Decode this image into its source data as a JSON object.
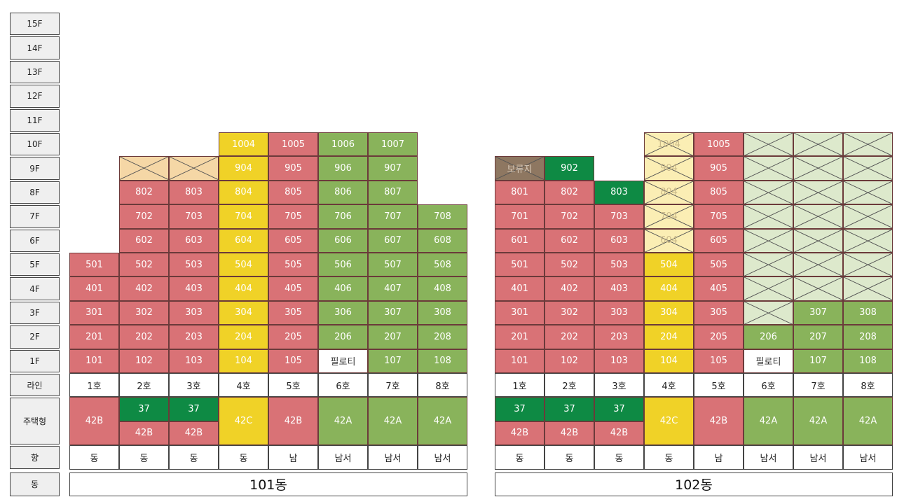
{
  "colors": {
    "red": "#d97276",
    "yellow": "#f0d227",
    "lightgreen": "#89b35b",
    "darkgreen": "#0e8a44",
    "peach": "#f5d7a6",
    "paleyellow": "#fbeeb4",
    "palegreen": "#dde9cc",
    "brown": "#8e7761",
    "white": "#ffffff"
  },
  "row_labels": {
    "floors": [
      "15F",
      "14F",
      "13F",
      "12F",
      "11F",
      "10F",
      "9F",
      "8F",
      "7F",
      "6F",
      "5F",
      "4F",
      "3F",
      "2F",
      "1F"
    ],
    "line": "라인",
    "type": "주택형",
    "direction": "향",
    "building": "동"
  },
  "buildings": [
    {
      "name": "101동",
      "lines": [
        "1호",
        "2호",
        "3호",
        "4호",
        "5호",
        "6호",
        "7호",
        "8호"
      ],
      "directions": [
        "동",
        "동",
        "동",
        "동",
        "남",
        "남서",
        "남서",
        "남서"
      ],
      "types": [
        {
          "top": "42B",
          "top_color": "red"
        },
        {
          "top": "37",
          "top_color": "darkgreen",
          "bottom": "42B",
          "bottom_color": "red"
        },
        {
          "top": "37",
          "top_color": "darkgreen",
          "bottom": "42B",
          "bottom_color": "red"
        },
        {
          "top": "42C",
          "top_color": "yellow"
        },
        {
          "top": "42B",
          "top_color": "red"
        },
        {
          "top": "42A",
          "top_color": "lightgreen"
        },
        {
          "top": "42A",
          "top_color": "lightgreen"
        },
        {
          "top": "42A",
          "top_color": "lightgreen"
        }
      ],
      "units": [
        {
          "c": 0,
          "f": 1,
          "t": "101",
          "k": "red"
        },
        {
          "c": 0,
          "f": 2,
          "t": "201",
          "k": "red"
        },
        {
          "c": 0,
          "f": 3,
          "t": "301",
          "k": "red"
        },
        {
          "c": 0,
          "f": 4,
          "t": "401",
          "k": "red"
        },
        {
          "c": 0,
          "f": 5,
          "t": "501",
          "k": "red"
        },
        {
          "c": 1,
          "f": 1,
          "t": "102",
          "k": "red"
        },
        {
          "c": 1,
          "f": 2,
          "t": "202",
          "k": "red"
        },
        {
          "c": 1,
          "f": 3,
          "t": "302",
          "k": "red"
        },
        {
          "c": 1,
          "f": 4,
          "t": "402",
          "k": "red"
        },
        {
          "c": 1,
          "f": 5,
          "t": "502",
          "k": "red"
        },
        {
          "c": 1,
          "f": 6,
          "t": "602",
          "k": "red"
        },
        {
          "c": 1,
          "f": 7,
          "t": "702",
          "k": "red"
        },
        {
          "c": 1,
          "f": 8,
          "t": "802",
          "k": "red"
        },
        {
          "c": 1,
          "f": 9,
          "t": "",
          "k": "peach",
          "x": true
        },
        {
          "c": 2,
          "f": 1,
          "t": "103",
          "k": "red"
        },
        {
          "c": 2,
          "f": 2,
          "t": "203",
          "k": "red"
        },
        {
          "c": 2,
          "f": 3,
          "t": "303",
          "k": "red"
        },
        {
          "c": 2,
          "f": 4,
          "t": "403",
          "k": "red"
        },
        {
          "c": 2,
          "f": 5,
          "t": "503",
          "k": "red"
        },
        {
          "c": 2,
          "f": 6,
          "t": "603",
          "k": "red"
        },
        {
          "c": 2,
          "f": 7,
          "t": "703",
          "k": "red"
        },
        {
          "c": 2,
          "f": 8,
          "t": "803",
          "k": "red"
        },
        {
          "c": 2,
          "f": 9,
          "t": "",
          "k": "peach",
          "x": true
        },
        {
          "c": 3,
          "f": 1,
          "t": "104",
          "k": "yellow"
        },
        {
          "c": 3,
          "f": 2,
          "t": "204",
          "k": "yellow"
        },
        {
          "c": 3,
          "f": 3,
          "t": "304",
          "k": "yellow"
        },
        {
          "c": 3,
          "f": 4,
          "t": "404",
          "k": "yellow"
        },
        {
          "c": 3,
          "f": 5,
          "t": "504",
          "k": "yellow"
        },
        {
          "c": 3,
          "f": 6,
          "t": "604",
          "k": "yellow"
        },
        {
          "c": 3,
          "f": 7,
          "t": "704",
          "k": "yellow"
        },
        {
          "c": 3,
          "f": 8,
          "t": "804",
          "k": "yellow"
        },
        {
          "c": 3,
          "f": 9,
          "t": "904",
          "k": "yellow"
        },
        {
          "c": 3,
          "f": 10,
          "t": "1004",
          "k": "yellow"
        },
        {
          "c": 4,
          "f": 1,
          "t": "105",
          "k": "red"
        },
        {
          "c": 4,
          "f": 2,
          "t": "205",
          "k": "red"
        },
        {
          "c": 4,
          "f": 3,
          "t": "305",
          "k": "red"
        },
        {
          "c": 4,
          "f": 4,
          "t": "405",
          "k": "red"
        },
        {
          "c": 4,
          "f": 5,
          "t": "505",
          "k": "red"
        },
        {
          "c": 4,
          "f": 6,
          "t": "605",
          "k": "red"
        },
        {
          "c": 4,
          "f": 7,
          "t": "705",
          "k": "red"
        },
        {
          "c": 4,
          "f": 8,
          "t": "805",
          "k": "red"
        },
        {
          "c": 4,
          "f": 9,
          "t": "905",
          "k": "red"
        },
        {
          "c": 4,
          "f": 10,
          "t": "1005",
          "k": "red"
        },
        {
          "c": 5,
          "f": 1,
          "t": "필로티",
          "k": "white"
        },
        {
          "c": 5,
          "f": 2,
          "t": "206",
          "k": "lightgreen"
        },
        {
          "c": 5,
          "f": 3,
          "t": "306",
          "k": "lightgreen"
        },
        {
          "c": 5,
          "f": 4,
          "t": "406",
          "k": "lightgreen"
        },
        {
          "c": 5,
          "f": 5,
          "t": "506",
          "k": "lightgreen"
        },
        {
          "c": 5,
          "f": 6,
          "t": "606",
          "k": "lightgreen"
        },
        {
          "c": 5,
          "f": 7,
          "t": "706",
          "k": "lightgreen"
        },
        {
          "c": 5,
          "f": 8,
          "t": "806",
          "k": "lightgreen"
        },
        {
          "c": 5,
          "f": 9,
          "t": "906",
          "k": "lightgreen"
        },
        {
          "c": 5,
          "f": 10,
          "t": "1006",
          "k": "lightgreen"
        },
        {
          "c": 6,
          "f": 1,
          "t": "107",
          "k": "lightgreen"
        },
        {
          "c": 6,
          "f": 2,
          "t": "207",
          "k": "lightgreen"
        },
        {
          "c": 6,
          "f": 3,
          "t": "307",
          "k": "lightgreen"
        },
        {
          "c": 6,
          "f": 4,
          "t": "407",
          "k": "lightgreen"
        },
        {
          "c": 6,
          "f": 5,
          "t": "507",
          "k": "lightgreen"
        },
        {
          "c": 6,
          "f": 6,
          "t": "607",
          "k": "lightgreen"
        },
        {
          "c": 6,
          "f": 7,
          "t": "707",
          "k": "lightgreen"
        },
        {
          "c": 6,
          "f": 8,
          "t": "807",
          "k": "lightgreen"
        },
        {
          "c": 6,
          "f": 9,
          "t": "907",
          "k": "lightgreen"
        },
        {
          "c": 6,
          "f": 10,
          "t": "1007",
          "k": "lightgreen"
        },
        {
          "c": 7,
          "f": 1,
          "t": "108",
          "k": "lightgreen"
        },
        {
          "c": 7,
          "f": 2,
          "t": "208",
          "k": "lightgreen"
        },
        {
          "c": 7,
          "f": 3,
          "t": "308",
          "k": "lightgreen"
        },
        {
          "c": 7,
          "f": 4,
          "t": "408",
          "k": "lightgreen"
        },
        {
          "c": 7,
          "f": 5,
          "t": "508",
          "k": "lightgreen"
        },
        {
          "c": 7,
          "f": 6,
          "t": "608",
          "k": "lightgreen"
        },
        {
          "c": 7,
          "f": 7,
          "t": "708",
          "k": "lightgreen"
        }
      ]
    },
    {
      "name": "102동",
      "lines": [
        "1호",
        "2호",
        "3호",
        "4호",
        "5호",
        "6호",
        "7호",
        "8호"
      ],
      "directions": [
        "동",
        "동",
        "동",
        "동",
        "남",
        "남서",
        "남서",
        "남서"
      ],
      "types": [
        {
          "top": "37",
          "top_color": "darkgreen",
          "bottom": "42B",
          "bottom_color": "red"
        },
        {
          "top": "37",
          "top_color": "darkgreen",
          "bottom": "42B",
          "bottom_color": "red"
        },
        {
          "top": "37",
          "top_color": "darkgreen",
          "bottom": "42B",
          "bottom_color": "red"
        },
        {
          "top": "42C",
          "top_color": "yellow"
        },
        {
          "top": "42B",
          "top_color": "red"
        },
        {
          "top": "42A",
          "top_color": "lightgreen"
        },
        {
          "top": "42A",
          "top_color": "lightgreen"
        },
        {
          "top": "42A",
          "top_color": "lightgreen"
        }
      ],
      "units": [
        {
          "c": 0,
          "f": 1,
          "t": "101",
          "k": "red"
        },
        {
          "c": 0,
          "f": 2,
          "t": "201",
          "k": "red"
        },
        {
          "c": 0,
          "f": 3,
          "t": "301",
          "k": "red"
        },
        {
          "c": 0,
          "f": 4,
          "t": "401",
          "k": "red"
        },
        {
          "c": 0,
          "f": 5,
          "t": "501",
          "k": "red"
        },
        {
          "c": 0,
          "f": 6,
          "t": "601",
          "k": "red"
        },
        {
          "c": 0,
          "f": 7,
          "t": "701",
          "k": "red"
        },
        {
          "c": 0,
          "f": 8,
          "t": "801",
          "k": "red"
        },
        {
          "c": 0,
          "f": 9,
          "t": "보류지",
          "k": "brown",
          "x": true
        },
        {
          "c": 1,
          "f": 1,
          "t": "102",
          "k": "red"
        },
        {
          "c": 1,
          "f": 2,
          "t": "202",
          "k": "red"
        },
        {
          "c": 1,
          "f": 3,
          "t": "302",
          "k": "red"
        },
        {
          "c": 1,
          "f": 4,
          "t": "402",
          "k": "red"
        },
        {
          "c": 1,
          "f": 5,
          "t": "502",
          "k": "red"
        },
        {
          "c": 1,
          "f": 6,
          "t": "602",
          "k": "red"
        },
        {
          "c": 1,
          "f": 7,
          "t": "702",
          "k": "red"
        },
        {
          "c": 1,
          "f": 8,
          "t": "802",
          "k": "red"
        },
        {
          "c": 1,
          "f": 9,
          "t": "902",
          "k": "darkgreen"
        },
        {
          "c": 2,
          "f": 1,
          "t": "103",
          "k": "red"
        },
        {
          "c": 2,
          "f": 2,
          "t": "203",
          "k": "red"
        },
        {
          "c": 2,
          "f": 3,
          "t": "303",
          "k": "red"
        },
        {
          "c": 2,
          "f": 4,
          "t": "403",
          "k": "red"
        },
        {
          "c": 2,
          "f": 5,
          "t": "503",
          "k": "red"
        },
        {
          "c": 2,
          "f": 6,
          "t": "603",
          "k": "red"
        },
        {
          "c": 2,
          "f": 7,
          "t": "703",
          "k": "red"
        },
        {
          "c": 2,
          "f": 8,
          "t": "803",
          "k": "darkgreen"
        },
        {
          "c": 3,
          "f": 1,
          "t": "104",
          "k": "yellow"
        },
        {
          "c": 3,
          "f": 2,
          "t": "204",
          "k": "yellow"
        },
        {
          "c": 3,
          "f": 3,
          "t": "304",
          "k": "yellow"
        },
        {
          "c": 3,
          "f": 4,
          "t": "404",
          "k": "yellow"
        },
        {
          "c": 3,
          "f": 5,
          "t": "504",
          "k": "yellow"
        },
        {
          "c": 3,
          "f": 6,
          "t": "604",
          "k": "paleyellow",
          "x": true
        },
        {
          "c": 3,
          "f": 7,
          "t": "704",
          "k": "paleyellow",
          "x": true
        },
        {
          "c": 3,
          "f": 8,
          "t": "804",
          "k": "paleyellow",
          "x": true
        },
        {
          "c": 3,
          "f": 9,
          "t": "904",
          "k": "paleyellow",
          "x": true
        },
        {
          "c": 3,
          "f": 10,
          "t": "1004",
          "k": "paleyellow",
          "x": true
        },
        {
          "c": 4,
          "f": 1,
          "t": "105",
          "k": "red"
        },
        {
          "c": 4,
          "f": 2,
          "t": "205",
          "k": "red"
        },
        {
          "c": 4,
          "f": 3,
          "t": "305",
          "k": "red"
        },
        {
          "c": 4,
          "f": 4,
          "t": "405",
          "k": "red"
        },
        {
          "c": 4,
          "f": 5,
          "t": "505",
          "k": "red"
        },
        {
          "c": 4,
          "f": 6,
          "t": "605",
          "k": "red"
        },
        {
          "c": 4,
          "f": 7,
          "t": "705",
          "k": "red"
        },
        {
          "c": 4,
          "f": 8,
          "t": "805",
          "k": "red"
        },
        {
          "c": 4,
          "f": 9,
          "t": "905",
          "k": "red"
        },
        {
          "c": 4,
          "f": 10,
          "t": "1005",
          "k": "red"
        },
        {
          "c": 5,
          "f": 1,
          "t": "필로티",
          "k": "white"
        },
        {
          "c": 5,
          "f": 2,
          "t": "206",
          "k": "lightgreen"
        },
        {
          "c": 5,
          "f": 3,
          "t": "",
          "k": "palegreen",
          "x": true
        },
        {
          "c": 5,
          "f": 4,
          "t": "",
          "k": "palegreen",
          "x": true
        },
        {
          "c": 5,
          "f": 5,
          "t": "",
          "k": "palegreen",
          "x": true
        },
        {
          "c": 5,
          "f": 6,
          "t": "",
          "k": "palegreen",
          "x": true
        },
        {
          "c": 5,
          "f": 7,
          "t": "",
          "k": "palegreen",
          "x": true
        },
        {
          "c": 5,
          "f": 8,
          "t": "",
          "k": "palegreen",
          "x": true
        },
        {
          "c": 5,
          "f": 9,
          "t": "",
          "k": "palegreen",
          "x": true
        },
        {
          "c": 5,
          "f": 10,
          "t": "",
          "k": "palegreen",
          "x": true
        },
        {
          "c": 6,
          "f": 1,
          "t": "107",
          "k": "lightgreen"
        },
        {
          "c": 6,
          "f": 2,
          "t": "207",
          "k": "lightgreen"
        },
        {
          "c": 6,
          "f": 3,
          "t": "307",
          "k": "lightgreen"
        },
        {
          "c": 6,
          "f": 4,
          "t": "",
          "k": "palegreen",
          "x": true
        },
        {
          "c": 6,
          "f": 5,
          "t": "",
          "k": "palegreen",
          "x": true
        },
        {
          "c": 6,
          "f": 6,
          "t": "",
          "k": "palegreen",
          "x": true
        },
        {
          "c": 6,
          "f": 7,
          "t": "",
          "k": "palegreen",
          "x": true
        },
        {
          "c": 6,
          "f": 8,
          "t": "",
          "k": "palegreen",
          "x": true
        },
        {
          "c": 6,
          "f": 9,
          "t": "",
          "k": "palegreen",
          "x": true
        },
        {
          "c": 6,
          "f": 10,
          "t": "",
          "k": "palegreen",
          "x": true
        },
        {
          "c": 7,
          "f": 1,
          "t": "108",
          "k": "lightgreen"
        },
        {
          "c": 7,
          "f": 2,
          "t": "208",
          "k": "lightgreen"
        },
        {
          "c": 7,
          "f": 3,
          "t": "308",
          "k": "lightgreen"
        },
        {
          "c": 7,
          "f": 4,
          "t": "",
          "k": "palegreen",
          "x": true
        },
        {
          "c": 7,
          "f": 5,
          "t": "",
          "k": "palegreen",
          "x": true
        },
        {
          "c": 7,
          "f": 6,
          "t": "",
          "k": "palegreen",
          "x": true
        },
        {
          "c": 7,
          "f": 7,
          "t": "",
          "k": "palegreen",
          "x": true
        },
        {
          "c": 7,
          "f": 8,
          "t": "",
          "k": "palegreen",
          "x": true
        },
        {
          "c": 7,
          "f": 9,
          "t": "",
          "k": "palegreen",
          "x": true
        },
        {
          "c": 7,
          "f": 10,
          "t": "",
          "k": "palegreen",
          "x": true
        }
      ]
    }
  ]
}
